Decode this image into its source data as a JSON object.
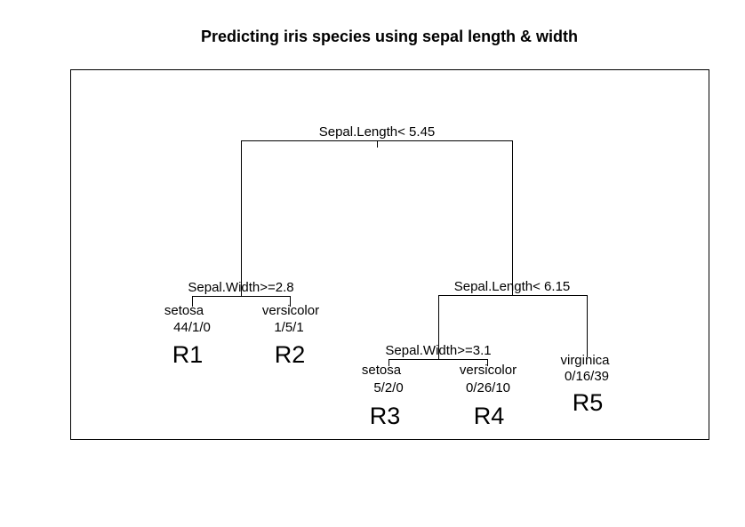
{
  "title": "Predicting iris species using sepal length & width",
  "splits": {
    "root": "Sepal.Length< 5.45",
    "left": "Sepal.Width>=2.8",
    "right": "Sepal.Length< 6.15",
    "right_left": "Sepal.Width>=3.1"
  },
  "leaves": [
    {
      "class": "setosa",
      "counts": "44/1/0",
      "region": "R1"
    },
    {
      "class": "versicolor",
      "counts": "1/5/1",
      "region": "R2"
    },
    {
      "class": "setosa",
      "counts": "5/2/0",
      "region": "R3"
    },
    {
      "class": "versicolor",
      "counts": "0/26/10",
      "region": "R4"
    },
    {
      "class": "virginica",
      "counts": "0/16/39",
      "region": "R5"
    }
  ]
}
